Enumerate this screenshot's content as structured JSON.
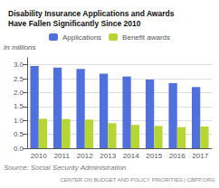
{
  "chart_data": {
    "type": "bar",
    "title": "Disability Insurance Applications and Awards\nHave Fallen Significantly Since 2010",
    "ylabel": "In millions",
    "categories": [
      2010,
      2011,
      2012,
      2013,
      2014,
      2015,
      2016,
      2017
    ],
    "series": [
      {
        "name": "Applications",
        "values": [
          2.96,
          2.9,
          2.85,
          2.68,
          2.58,
          2.47,
          2.34,
          2.2
        ]
      },
      {
        "name": "Benefit awards",
        "values": [
          1.06,
          1.05,
          1.03,
          0.9,
          0.84,
          0.8,
          0.76,
          0.78
        ]
      }
    ],
    "ylim": [
      0,
      3.25
    ],
    "yticks": [
      {
        "value": 0,
        "label": "0.0"
      },
      0.5,
      {
        "value": 1,
        "label": "1.0"
      },
      1.5,
      {
        "value": 2,
        "label": "2.0"
      },
      2.5,
      {
        "value": 3,
        "label": "3.0"
      }
    ],
    "grid": true,
    "legend": "top",
    "annotations": [
      "Source: Social Security Administration",
      "CENTER ON BUDGET AND POLICY PRIORITIES | CBPP.ORG"
    ]
  }
}
